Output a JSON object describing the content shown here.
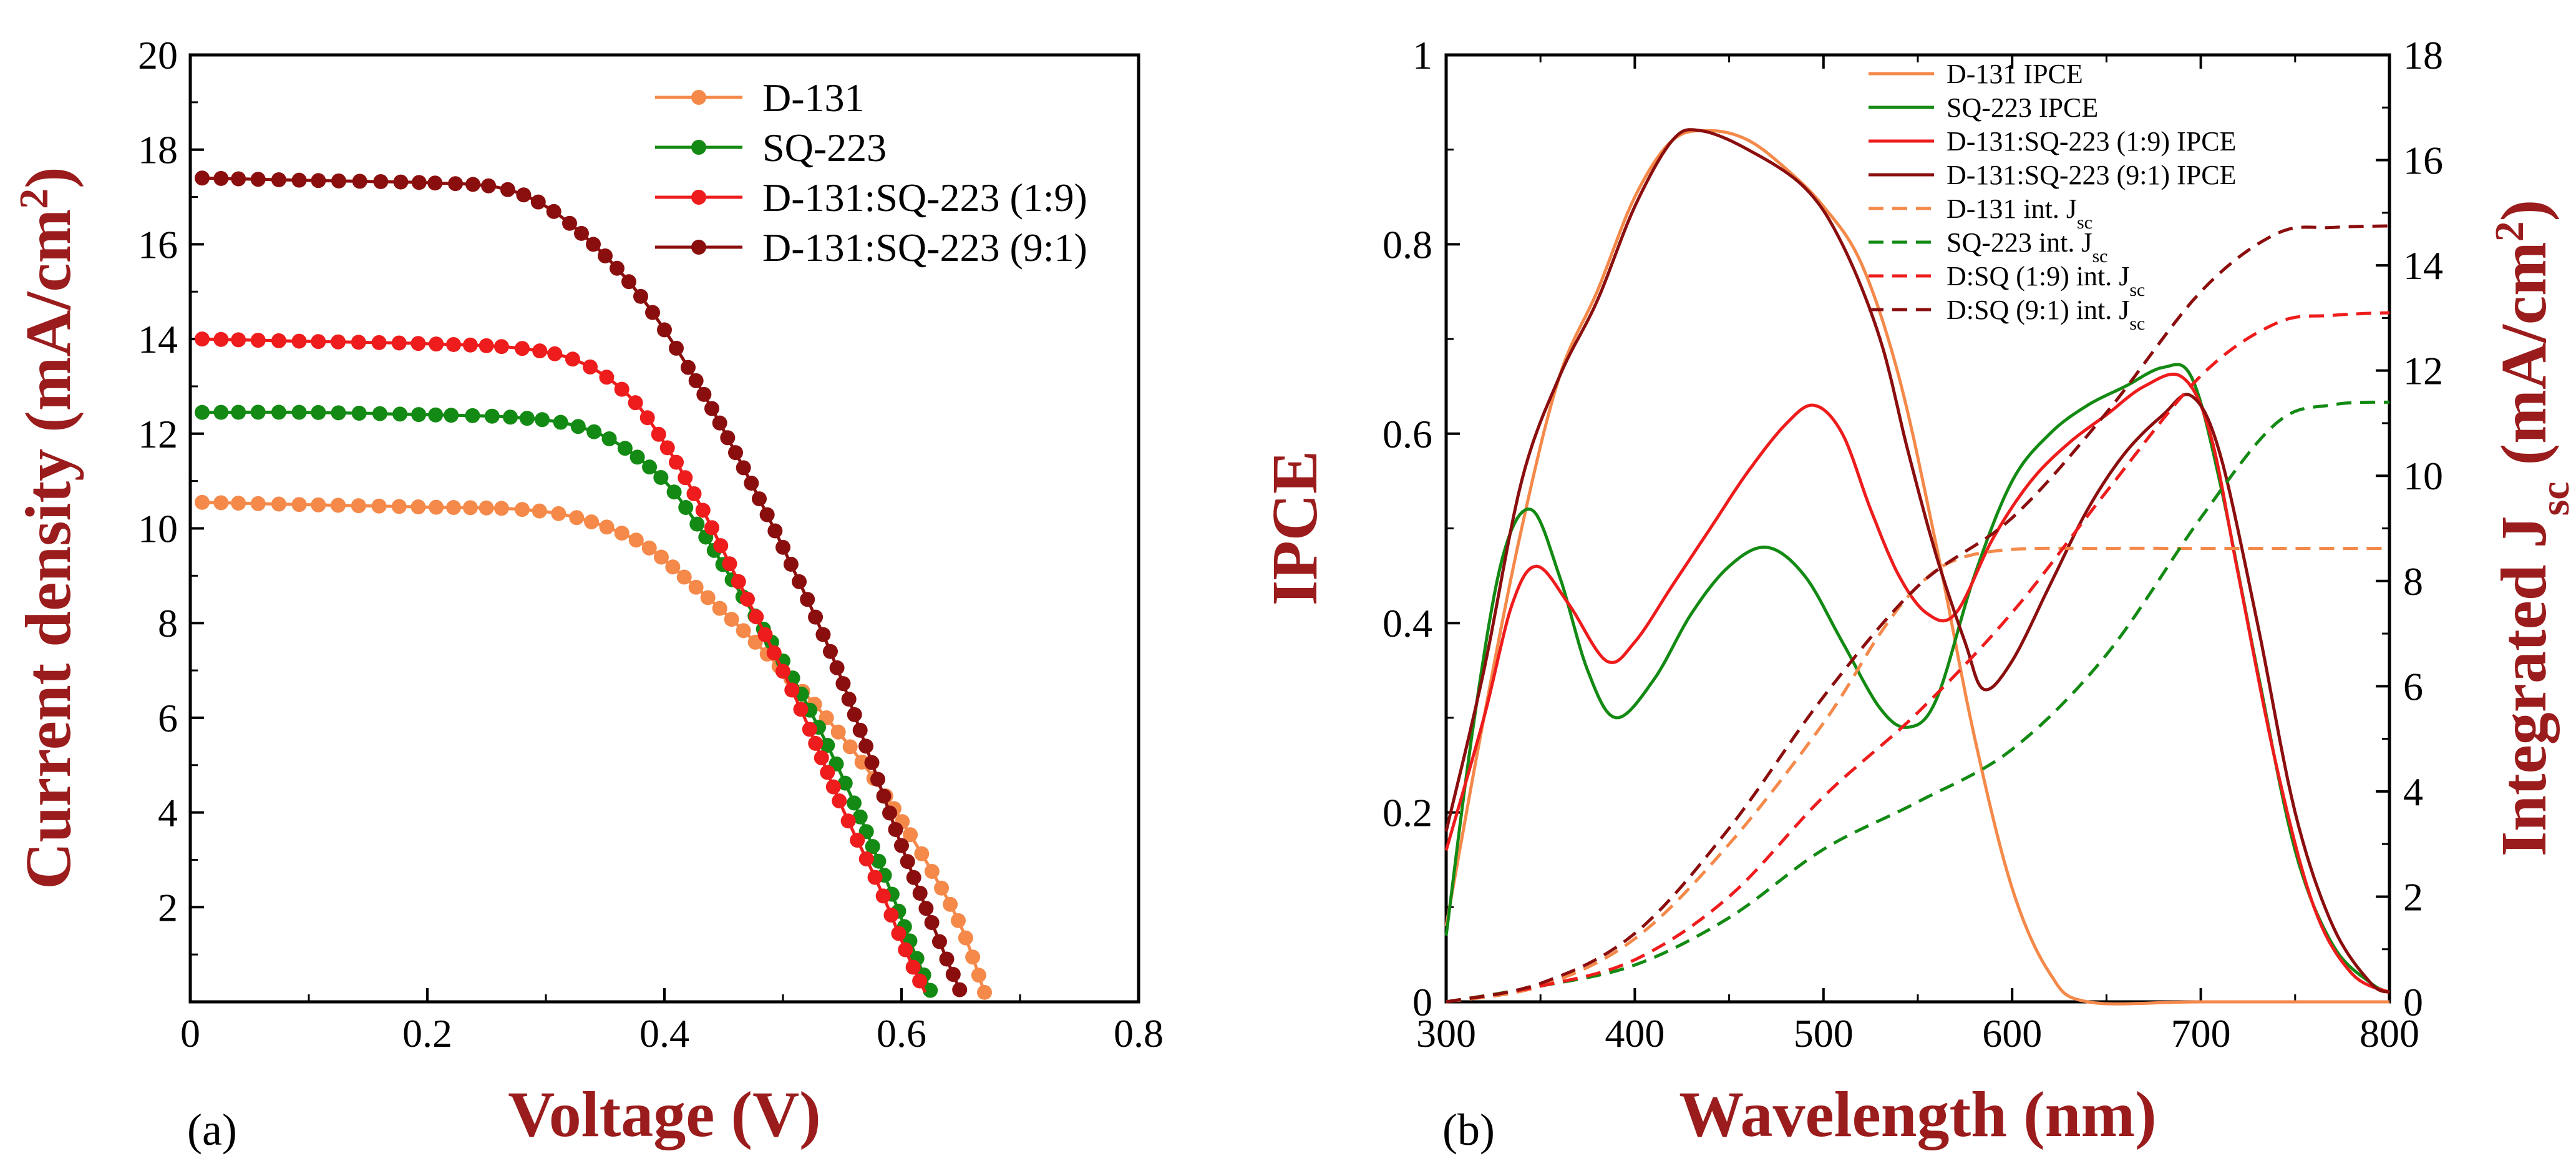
{
  "chart_data": [
    {
      "type": "line",
      "panel_label": "(a)",
      "xlabel": "Voltage (V)",
      "ylabel": "Current density (mA/cm",
      "ylabel_sup": "2",
      "ylabel_close": ")",
      "xlim": [
        0,
        0.8
      ],
      "ylim": [
        0,
        20
      ],
      "xticks": [
        0,
        0.2,
        0.4,
        0.6,
        0.8
      ],
      "xtick_labels": [
        "0",
        "0.2",
        "0.4",
        "0.6",
        "0.8"
      ],
      "yticks": [
        2,
        4,
        6,
        8,
        10,
        12,
        14,
        16,
        18,
        20
      ],
      "ytick_labels": [
        "2",
        "4",
        "6",
        "8",
        "10",
        "12",
        "14",
        "16",
        "18",
        "20"
      ],
      "legend_position": "top-right",
      "series": [
        {
          "name": "D-131",
          "color": "#f4894a",
          "marker": "circle",
          "points": [
            [
              0.01,
              10.55
            ],
            [
              0.1,
              10.5
            ],
            [
              0.2,
              10.45
            ],
            [
              0.28,
              10.4
            ],
            [
              0.33,
              10.2
            ],
            [
              0.38,
              9.7
            ],
            [
              0.42,
              8.9
            ],
            [
              0.46,
              8.0
            ],
            [
              0.5,
              7.0
            ],
            [
              0.54,
              5.9
            ],
            [
              0.58,
              4.6
            ],
            [
              0.62,
              3.0
            ],
            [
              0.65,
              1.6
            ],
            [
              0.67,
              0.2
            ]
          ]
        },
        {
          "name": "SQ-223",
          "color": "#138a13",
          "marker": "circle",
          "points": [
            [
              0.01,
              12.45
            ],
            [
              0.1,
              12.45
            ],
            [
              0.2,
              12.4
            ],
            [
              0.27,
              12.35
            ],
            [
              0.32,
              12.2
            ],
            [
              0.36,
              11.8
            ],
            [
              0.4,
              11.0
            ],
            [
              0.43,
              10.0
            ],
            [
              0.46,
              8.8
            ],
            [
              0.5,
              7.2
            ],
            [
              0.53,
              5.8
            ],
            [
              0.56,
              4.2
            ],
            [
              0.59,
              2.4
            ],
            [
              0.61,
              1.1
            ],
            [
              0.625,
              0.2
            ]
          ]
        },
        {
          "name": "D-131:SQ-223 (1:9)",
          "color": "#ee1c1c",
          "marker": "circle",
          "points": [
            [
              0.01,
              14.0
            ],
            [
              0.1,
              13.95
            ],
            [
              0.2,
              13.9
            ],
            [
              0.28,
              13.8
            ],
            [
              0.33,
              13.5
            ],
            [
              0.37,
              12.8
            ],
            [
              0.4,
              11.8
            ],
            [
              0.43,
              10.5
            ],
            [
              0.46,
              9.0
            ],
            [
              0.49,
              7.5
            ],
            [
              0.52,
              5.9
            ],
            [
              0.55,
              4.1
            ],
            [
              0.58,
              2.5
            ],
            [
              0.605,
              1.0
            ],
            [
              0.62,
              0.2
            ]
          ]
        },
        {
          "name": "D-131:SQ-223 (9:1)",
          "color": "#8b0e0e",
          "marker": "circle",
          "points": [
            [
              0.01,
              17.4
            ],
            [
              0.1,
              17.35
            ],
            [
              0.2,
              17.3
            ],
            [
              0.26,
              17.2
            ],
            [
              0.3,
              16.8
            ],
            [
              0.34,
              16.0
            ],
            [
              0.38,
              14.9
            ],
            [
              0.42,
              13.4
            ],
            [
              0.46,
              11.6
            ],
            [
              0.5,
              9.6
            ],
            [
              0.54,
              7.4
            ],
            [
              0.57,
              5.4
            ],
            [
              0.6,
              3.3
            ],
            [
              0.63,
              1.4
            ],
            [
              0.65,
              0.2
            ]
          ]
        }
      ]
    },
    {
      "type": "line",
      "panel_label": "(b)",
      "xlabel": "Wavelength (nm)",
      "ylabel": "IPCE",
      "ylabel_right": "Integrated J",
      "ylabel_right_sub": "sc",
      "ylabel_right_unit": "(mA/cm",
      "ylabel_right_sup": "2",
      "ylabel_right_close": ")",
      "xlim": [
        300,
        800
      ],
      "ylim": [
        0,
        1
      ],
      "ylim_right": [
        0,
        18
      ],
      "xticks": [
        300,
        400,
        500,
        600,
        700,
        800
      ],
      "xtick_labels": [
        "300",
        "400",
        "500",
        "600",
        "700",
        "800"
      ],
      "yticks": [
        0,
        0.2,
        0.4,
        0.6,
        0.8,
        1
      ],
      "ytick_labels": [
        "0",
        "0.2",
        "0.4",
        "0.6",
        "0.8",
        "1"
      ],
      "yticks_right": [
        0,
        2,
        4,
        6,
        8,
        10,
        12,
        14,
        16,
        18
      ],
      "ytick_labels_right": [
        "0",
        "2",
        "4",
        "6",
        "8",
        "10",
        "12",
        "14",
        "16",
        "18"
      ],
      "legend_position": "top-center",
      "series": [
        {
          "name": "D-131 IPCE",
          "legend_main": "D-131 IPCE",
          "legend_sub": "",
          "color": "#f4894a",
          "dash": "solid",
          "axis": "left",
          "points": [
            [
              300,
              0.08
            ],
            [
              320,
              0.3
            ],
            [
              340,
              0.5
            ],
            [
              360,
              0.66
            ],
            [
              380,
              0.75
            ],
            [
              400,
              0.85
            ],
            [
              420,
              0.91
            ],
            [
              440,
              0.92
            ],
            [
              460,
              0.91
            ],
            [
              480,
              0.88
            ],
            [
              500,
              0.84
            ],
            [
              520,
              0.78
            ],
            [
              540,
              0.66
            ],
            [
              560,
              0.48
            ],
            [
              580,
              0.28
            ],
            [
              600,
              0.12
            ],
            [
              620,
              0.03
            ],
            [
              640,
              0.0
            ],
            [
              700,
              0.0
            ],
            [
              800,
              0.0
            ]
          ]
        },
        {
          "name": "SQ-223 IPCE",
          "legend_main": "SQ-223 IPCE",
          "legend_sub": "",
          "color": "#138a13",
          "dash": "solid",
          "axis": "left",
          "points": [
            [
              300,
              0.07
            ],
            [
              315,
              0.3
            ],
            [
              330,
              0.47
            ],
            [
              345,
              0.52
            ],
            [
              360,
              0.45
            ],
            [
              375,
              0.35
            ],
            [
              390,
              0.3
            ],
            [
              410,
              0.34
            ],
            [
              430,
              0.41
            ],
            [
              450,
              0.46
            ],
            [
              470,
              0.48
            ],
            [
              490,
              0.45
            ],
            [
              510,
              0.38
            ],
            [
              530,
              0.31
            ],
            [
              545,
              0.29
            ],
            [
              560,
              0.32
            ],
            [
              580,
              0.45
            ],
            [
              600,
              0.55
            ],
            [
              620,
              0.6
            ],
            [
              640,
              0.63
            ],
            [
              660,
              0.65
            ],
            [
              680,
              0.67
            ],
            [
              695,
              0.66
            ],
            [
              710,
              0.55
            ],
            [
              730,
              0.35
            ],
            [
              750,
              0.16
            ],
            [
              770,
              0.06
            ],
            [
              790,
              0.02
            ],
            [
              800,
              0.01
            ]
          ]
        },
        {
          "name": "D-131:SQ-223 (1:9) IPCE",
          "legend_main": "D-131:SQ-223 (1:9) IPCE",
          "legend_sub": "",
          "color": "#ee1c1c",
          "dash": "solid",
          "axis": "left",
          "points": [
            [
              300,
              0.16
            ],
            [
              320,
              0.3
            ],
            [
              335,
              0.42
            ],
            [
              348,
              0.46
            ],
            [
              365,
              0.42
            ],
            [
              385,
              0.36
            ],
            [
              400,
              0.38
            ],
            [
              420,
              0.44
            ],
            [
              440,
              0.5
            ],
            [
              460,
              0.56
            ],
            [
              480,
              0.61
            ],
            [
              495,
              0.63
            ],
            [
              510,
              0.6
            ],
            [
              525,
              0.52
            ],
            [
              540,
              0.45
            ],
            [
              555,
              0.41
            ],
            [
              570,
              0.41
            ],
            [
              590,
              0.49
            ],
            [
              610,
              0.55
            ],
            [
              630,
              0.59
            ],
            [
              650,
              0.62
            ],
            [
              670,
              0.65
            ],
            [
              690,
              0.66
            ],
            [
              705,
              0.6
            ],
            [
              720,
              0.45
            ],
            [
              740,
              0.25
            ],
            [
              760,
              0.1
            ],
            [
              780,
              0.03
            ],
            [
              800,
              0.01
            ]
          ]
        },
        {
          "name": "D-131:SQ-223 (9:1) IPCE",
          "legend_main": "D-131:SQ-223 (9:1) IPCE",
          "legend_sub": "",
          "color": "#8b0e0e",
          "dash": "solid",
          "axis": "left",
          "points": [
            [
              300,
              0.18
            ],
            [
              320,
              0.35
            ],
            [
              340,
              0.55
            ],
            [
              360,
              0.66
            ],
            [
              380,
              0.74
            ],
            [
              400,
              0.84
            ],
            [
              420,
              0.91
            ],
            [
              435,
              0.92
            ],
            [
              460,
              0.9
            ],
            [
              490,
              0.86
            ],
            [
              510,
              0.8
            ],
            [
              530,
              0.7
            ],
            [
              545,
              0.58
            ],
            [
              560,
              0.47
            ],
            [
              575,
              0.38
            ],
            [
              585,
              0.33
            ],
            [
              600,
              0.36
            ],
            [
              620,
              0.44
            ],
            [
              640,
              0.52
            ],
            [
              660,
              0.58
            ],
            [
              680,
              0.62
            ],
            [
              695,
              0.64
            ],
            [
              710,
              0.58
            ],
            [
              730,
              0.4
            ],
            [
              750,
              0.2
            ],
            [
              770,
              0.08
            ],
            [
              790,
              0.02
            ],
            [
              800,
              0.01
            ]
          ]
        },
        {
          "name": "D-131 int. Jsc",
          "legend_main": "D-131 int. J",
          "legend_sub": "sc",
          "color": "#f4894a",
          "dash": "dashed",
          "axis": "right",
          "points": [
            [
              300,
              0.0
            ],
            [
              350,
              0.3
            ],
            [
              400,
              1.2
            ],
            [
              450,
              3.0
            ],
            [
              500,
              5.3
            ],
            [
              530,
              7.0
            ],
            [
              550,
              7.9
            ],
            [
              570,
              8.4
            ],
            [
              600,
              8.6
            ],
            [
              650,
              8.62
            ],
            [
              700,
              8.62
            ],
            [
              800,
              8.62
            ]
          ]
        },
        {
          "name": "SQ-223 int. Jsc",
          "legend_main": "SQ-223 int. J",
          "legend_sub": "sc",
          "color": "#138a13",
          "dash": "dashed",
          "axis": "right",
          "points": [
            [
              300,
              0.0
            ],
            [
              350,
              0.3
            ],
            [
              400,
              0.7
            ],
            [
              450,
              1.6
            ],
            [
              500,
              2.9
            ],
            [
              550,
              3.8
            ],
            [
              600,
              4.8
            ],
            [
              650,
              6.6
            ],
            [
              700,
              9.2
            ],
            [
              740,
              11.0
            ],
            [
              770,
              11.35
            ],
            [
              800,
              11.4
            ]
          ]
        },
        {
          "name": "D:SQ (1:9) int. Jsc",
          "legend_main": "D:SQ (1:9) int. J",
          "legend_sub": "sc",
          "color": "#ee1c1c",
          "dash": "dashed",
          "axis": "right",
          "points": [
            [
              300,
              0.0
            ],
            [
              350,
              0.3
            ],
            [
              400,
              0.8
            ],
            [
              450,
              2.0
            ],
            [
              500,
              3.9
            ],
            [
              550,
              5.5
            ],
            [
              600,
              7.4
            ],
            [
              650,
              9.7
            ],
            [
              700,
              11.9
            ],
            [
              740,
              12.9
            ],
            [
              770,
              13.05
            ],
            [
              800,
              13.1
            ]
          ]
        },
        {
          "name": "D:SQ (9:1) int. Jsc",
          "legend_main": "D:SQ (9:1) int. J",
          "legend_sub": "sc",
          "color": "#8b0e0e",
          "dash": "dashed",
          "axis": "right",
          "points": [
            [
              300,
              0.0
            ],
            [
              350,
              0.35
            ],
            [
              400,
              1.3
            ],
            [
              450,
              3.3
            ],
            [
              500,
              5.8
            ],
            [
              550,
              7.9
            ],
            [
              600,
              9.2
            ],
            [
              650,
              11.2
            ],
            [
              700,
              13.5
            ],
            [
              740,
              14.6
            ],
            [
              770,
              14.72
            ],
            [
              800,
              14.75
            ]
          ]
        }
      ]
    }
  ]
}
